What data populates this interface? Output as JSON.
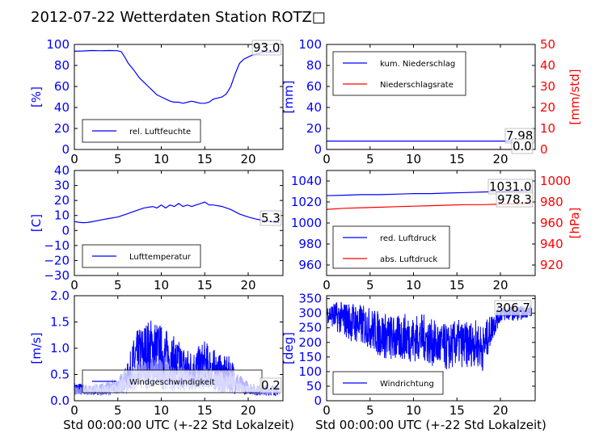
{
  "title": "2012-07-22 Wetterdaten Station ROTZ□",
  "colors": {
    "primary": "#0000ff",
    "secondary": "#ff0000",
    "light": "#7f7fff"
  },
  "chart_data": [
    {
      "id": "humidity",
      "type": "line",
      "ylabel": "[%]",
      "xlim": [
        0,
        24
      ],
      "ylim": [
        0,
        100
      ],
      "xticks": [
        0,
        5,
        10,
        15,
        20
      ],
      "yticks": [
        0,
        20,
        40,
        60,
        80,
        100
      ],
      "legend": {
        "placement": "lower-left",
        "entries": [
          "rel. Luftfeuchte"
        ]
      },
      "annotations": [
        "93.0"
      ],
      "series": [
        {
          "name": "rel. Luftfeuchte",
          "color": "#0000ff",
          "x": [
            0,
            1,
            2,
            3,
            4,
            5,
            5.4,
            5.8,
            6.2,
            6.8,
            7.5,
            8,
            8.5,
            9,
            9.5,
            10,
            10.5,
            11,
            11.5,
            12,
            12.5,
            13,
            13.5,
            14,
            14.5,
            15,
            15.5,
            16,
            16.5,
            17,
            17.5,
            18,
            18.5,
            19,
            19.5,
            20,
            20.5,
            21,
            21.5,
            22,
            22.5,
            23,
            23.6
          ],
          "y": [
            93.5,
            93.8,
            94.2,
            94.0,
            94.2,
            94,
            93,
            88,
            82,
            76,
            68,
            64,
            60,
            56,
            52,
            50,
            48,
            46,
            45,
            45,
            44,
            45,
            46,
            45,
            44,
            44,
            45,
            48,
            49,
            50,
            53,
            60,
            72,
            82,
            86,
            88,
            90,
            91,
            92,
            93,
            92.5,
            93,
            93
          ]
        }
      ]
    },
    {
      "id": "precipitation",
      "type": "line",
      "ylabel": "[mm]",
      "y2label": "[mm/std]",
      "xlim": [
        0,
        24
      ],
      "ylim": [
        0,
        100
      ],
      "y2lim": [
        0,
        50
      ],
      "xticks": [
        0,
        5,
        10,
        15,
        20
      ],
      "yticks": [
        0,
        20,
        40,
        60,
        80,
        100
      ],
      "y2ticks": [
        0,
        10,
        20,
        30,
        40,
        50
      ],
      "legend": {
        "placement": "upper-left",
        "entries": [
          "kum. Niederschlag",
          "Niederschlagsrate"
        ]
      },
      "annotations": [
        "7.98",
        "0.0"
      ],
      "series": [
        {
          "name": "kum. Niederschlag",
          "axis": "left",
          "color": "#0000ff",
          "x": [
            0,
            23.6
          ],
          "y": [
            7.98,
            7.98
          ]
        },
        {
          "name": "Niederschlagsrate",
          "axis": "right",
          "color": "#ff0000",
          "x": [
            0,
            23.6
          ],
          "y": [
            0,
            0
          ]
        }
      ]
    },
    {
      "id": "temperature",
      "type": "line",
      "ylabel": "[C]",
      "xlim": [
        0,
        24
      ],
      "ylim": [
        -30,
        40
      ],
      "xticks": [
        0,
        5,
        10,
        15,
        20
      ],
      "yticks": [
        -30,
        -20,
        -10,
        0,
        10,
        20,
        30,
        40
      ],
      "legend": {
        "placement": "lower-left",
        "entries": [
          "Lufttemperatur"
        ]
      },
      "annotations": [
        "5.3"
      ],
      "series": [
        {
          "name": "Lufttemperatur",
          "color": "#0000ff",
          "x": [
            0,
            0.5,
            1,
            1.5,
            2,
            3,
            4,
            5,
            6,
            7,
            8,
            9,
            9.5,
            10,
            10.5,
            11,
            11.5,
            12,
            12.5,
            13,
            13.5,
            14,
            14.5,
            15,
            15.5,
            16,
            17,
            18,
            19,
            20,
            21,
            22,
            23,
            23.6
          ],
          "y": [
            6,
            5.5,
            5.2,
            5.3,
            5.8,
            7,
            8,
            9,
            11,
            13,
            15,
            16,
            15,
            17,
            15,
            17,
            16,
            18,
            16,
            17,
            16,
            17,
            18,
            19,
            17,
            17,
            16,
            14,
            11,
            9,
            7.5,
            6.5,
            5.5,
            5.3
          ]
        }
      ]
    },
    {
      "id": "pressure",
      "type": "line",
      "ylabel": "",
      "y2label": "[hPa]",
      "xlim": [
        0,
        24
      ],
      "ylim": [
        950,
        1050
      ],
      "y2lim": [
        910,
        1010
      ],
      "xticks": [
        0,
        5,
        10,
        15,
        20
      ],
      "yticks": [
        960,
        980,
        1000,
        1020,
        1040
      ],
      "y2ticks": [
        920,
        940,
        960,
        980,
        1000
      ],
      "legend": {
        "placement": "lower-left",
        "entries": [
          "red. Luftdruck",
          "abs. Luftdruck"
        ]
      },
      "annotations": [
        "1031.0",
        "978.3"
      ],
      "series": [
        {
          "name": "red. Luftdruck",
          "axis": "left",
          "color": "#0000ff",
          "x": [
            0,
            2,
            4,
            6,
            8,
            10,
            12,
            14,
            16,
            18,
            20,
            22,
            23.6
          ],
          "y": [
            1026,
            1026.5,
            1027,
            1027,
            1027.5,
            1028,
            1028,
            1028.5,
            1029,
            1029.5,
            1030,
            1030.5,
            1031
          ]
        },
        {
          "name": "abs. Luftdruck",
          "axis": "right",
          "color": "#ff0000",
          "x": [
            0,
            2,
            4,
            6,
            8,
            10,
            12,
            14,
            16,
            18,
            20,
            22,
            23.6
          ],
          "y": [
            973,
            974,
            974.5,
            975,
            975.5,
            976,
            976.5,
            977,
            977.5,
            977.5,
            978,
            978.2,
            978.3
          ]
        }
      ]
    },
    {
      "id": "wind-speed",
      "type": "line",
      "ylabel": "[m/s]",
      "xlabel": "Std 00:00:00 UTC (+-22 Std Lokalzeit)",
      "xlim": [
        0,
        24
      ],
      "ylim": [
        0,
        2
      ],
      "xticks": [
        0,
        5,
        10,
        15,
        20
      ],
      "yticks": [
        0.0,
        0.5,
        1.0,
        1.5,
        2.0
      ],
      "legend": {
        "placement": "lower-center",
        "entries": [
          "Windgeschwindigkeit"
        ]
      },
      "annotations": [
        "0.2"
      ],
      "series": [
        {
          "name": "Windgeschwindigkeit",
          "color": "#0000ff",
          "noisy": true,
          "x": [
            0,
            2,
            4,
            5,
            6,
            7,
            8,
            9,
            10,
            11,
            12,
            13,
            14,
            15,
            16,
            17,
            18,
            19,
            20,
            21,
            22,
            23,
            23.6
          ],
          "y": [
            0.25,
            0.2,
            0.25,
            0.3,
            0.4,
            0.8,
            0.9,
            1.0,
            0.9,
            0.8,
            0.7,
            0.6,
            0.6,
            0.7,
            0.6,
            0.5,
            0.5,
            0.3,
            0.25,
            0.2,
            0.2,
            0.2,
            0.2
          ],
          "spread": [
            0.1,
            0.1,
            0.12,
            0.15,
            0.25,
            0.5,
            0.6,
            0.6,
            0.55,
            0.5,
            0.45,
            0.4,
            0.4,
            0.45,
            0.4,
            0.35,
            0.35,
            0.2,
            0.12,
            0.1,
            0.1,
            0.1,
            0.1
          ]
        },
        {
          "name": "",
          "color": "#7f7fff",
          "noisy": true,
          "x": [
            0,
            2,
            4,
            5,
            6,
            7,
            8,
            9,
            10,
            11,
            12,
            13,
            14,
            15,
            16,
            17,
            18,
            19,
            20,
            21,
            22,
            23,
            23.6
          ],
          "y": [
            0.2,
            0.18,
            0.2,
            0.25,
            0.3,
            0.45,
            0.5,
            0.55,
            0.5,
            0.45,
            0.4,
            0.4,
            0.4,
            0.45,
            0.4,
            0.35,
            0.35,
            0.25,
            0.2,
            0.18,
            0.18,
            0.2,
            0.2
          ],
          "spread": [
            0.08,
            0.08,
            0.1,
            0.12,
            0.18,
            0.25,
            0.3,
            0.3,
            0.3,
            0.25,
            0.25,
            0.2,
            0.2,
            0.25,
            0.2,
            0.2,
            0.2,
            0.12,
            0.08,
            0.08,
            0.08,
            0.08,
            0.08
          ]
        }
      ]
    },
    {
      "id": "wind-direction",
      "type": "line",
      "ylabel": "[deg]",
      "xlabel": "Std 00:00:00 UTC (+-22 Std Lokalzeit)",
      "xlim": [
        0,
        24
      ],
      "ylim": [
        0,
        360
      ],
      "xticks": [
        0,
        5,
        10,
        15,
        20
      ],
      "yticks": [
        0,
        50,
        100,
        150,
        200,
        250,
        300,
        350
      ],
      "legend": {
        "placement": "lower-left",
        "entries": [
          "Windrichtung"
        ]
      },
      "annotations": [
        "306.7"
      ],
      "series": [
        {
          "name": "Windrichtung",
          "color": "#0000ff",
          "noisy": true,
          "x": [
            0,
            1,
            2,
            3,
            4,
            5,
            6,
            7,
            8,
            9,
            10,
            11,
            12,
            13,
            14,
            15,
            16,
            17,
            18,
            19,
            20,
            21,
            22,
            23,
            23.6
          ],
          "y": [
            300,
            290,
            280,
            270,
            260,
            250,
            230,
            220,
            210,
            220,
            210,
            220,
            200,
            190,
            180,
            200,
            190,
            200,
            180,
            250,
            300,
            300,
            300,
            305,
            307
          ],
          "spread": [
            30,
            50,
            60,
            70,
            70,
            70,
            80,
            80,
            80,
            80,
            80,
            80,
            80,
            80,
            80,
            80,
            80,
            80,
            80,
            50,
            30,
            25,
            25,
            20,
            20
          ]
        }
      ]
    }
  ]
}
